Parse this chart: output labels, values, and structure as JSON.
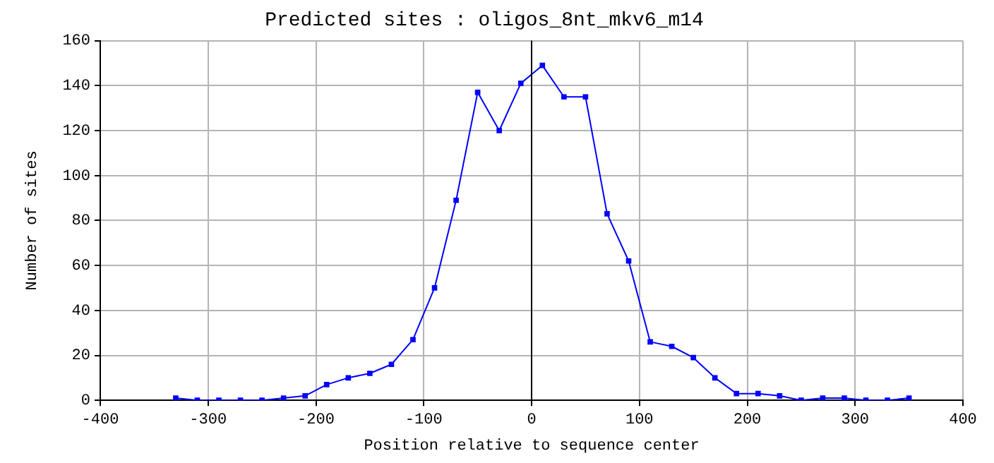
{
  "chart_data": {
    "type": "line",
    "title": "Predicted sites : oligos_8nt_mkv6_m14",
    "xlabel": "Position relative to sequence center",
    "ylabel": "Number of sites",
    "x": [
      -330,
      -310,
      -290,
      -270,
      -250,
      -230,
      -210,
      -190,
      -170,
      -150,
      -130,
      -110,
      -90,
      -70,
      -50,
      -30,
      -10,
      10,
      30,
      50,
      70,
      90,
      110,
      130,
      150,
      170,
      190,
      210,
      230,
      250,
      270,
      290,
      310,
      330,
      350
    ],
    "series": [
      {
        "color": "#0000ff",
        "values": [
          1,
          0,
          0,
          0,
          0,
          1,
          2,
          7,
          10,
          12,
          16,
          27,
          50,
          89,
          137,
          120,
          141,
          149,
          135,
          135,
          83,
          62,
          26,
          24,
          19,
          10,
          3,
          3,
          2,
          0,
          1,
          1,
          0,
          0,
          1
        ]
      }
    ],
    "xlim": [
      -400,
      400
    ],
    "xticks": [
      -400,
      -300,
      -200,
      -100,
      0,
      100,
      200,
      300,
      400
    ],
    "ylim": [
      0,
      160
    ],
    "yticks": [
      0,
      20,
      40,
      60,
      80,
      100,
      120,
      140,
      160
    ],
    "ref_lines": [
      {
        "axis": "x",
        "value": 0,
        "color": "#000000"
      }
    ],
    "grid": true,
    "legend": false,
    "marker": "square",
    "line_style": "solid"
  }
}
